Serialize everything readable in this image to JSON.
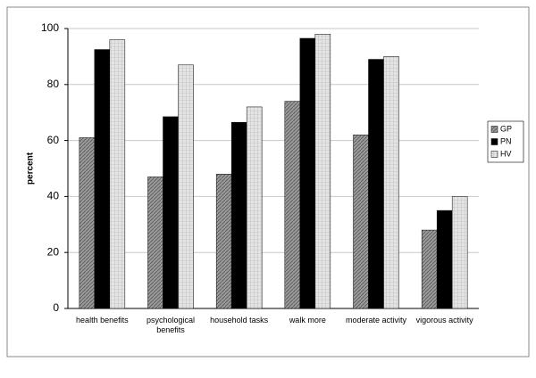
{
  "chart_data": {
    "type": "bar",
    "y_label": "percent",
    "categories": [
      "health benefits",
      "psychological benefits",
      "household tasks",
      "walk more",
      "moderate activity",
      "vigorous activity"
    ],
    "series": [
      {
        "name": "GP",
        "color": "#9a9a9a",
        "values": [
          61,
          47,
          48,
          74,
          62,
          28
        ]
      },
      {
        "name": "PN",
        "color": "#000000",
        "values": [
          92.5,
          68.5,
          66.5,
          96.5,
          89,
          35
        ]
      },
      {
        "name": "HV",
        "color": "#e4e4e4",
        "values": [
          96,
          87,
          72,
          98,
          90,
          40
        ]
      }
    ],
    "ylim": [
      0,
      100
    ],
    "yticks": [
      0,
      20,
      40,
      60,
      80,
      100
    ],
    "grid": true,
    "legend": "right"
  }
}
